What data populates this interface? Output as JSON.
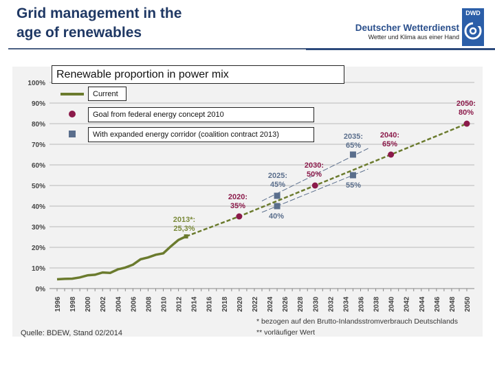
{
  "header": {
    "title_line1": "Grid management in the",
    "title_line2": "age of renewables",
    "brand_name": "Deutscher Wetterdienst",
    "brand_tagline": "Wetter und Klima aus einer Hand",
    "logo_text": "DWD"
  },
  "chart_data": {
    "type": "line",
    "title": "Renewable proportion in power mix",
    "ylim": [
      0,
      100
    ],
    "yticks": [
      "0%",
      "10%",
      "20%",
      "30%",
      "40%",
      "50%",
      "60%",
      "70%",
      "80%",
      "90%",
      "100%"
    ],
    "xlim": [
      1996,
      2050
    ],
    "xticks": [
      "1996",
      "1998",
      "2000",
      "2002",
      "2004",
      "2006",
      "2008",
      "2010",
      "2012",
      "2014",
      "2016",
      "2018",
      "2020",
      "2022",
      "2024",
      "2026",
      "2028",
      "2030",
      "2032",
      "2034",
      "2036",
      "2038",
      "2040",
      "2042",
      "2044",
      "2046",
      "2048",
      "2050"
    ],
    "grid": true,
    "legend": [
      "Current",
      "Goal from federal energy concept 2010",
      "With expanded energy corridor (coalition contract 2013)"
    ],
    "series": [
      {
        "name": "Current",
        "color": "#6b7b2e",
        "x": [
          1996,
          1997,
          1998,
          1999,
          2000,
          2001,
          2002,
          2003,
          2004,
          2005,
          2006,
          2007,
          2008,
          2009,
          2010,
          2011,
          2012,
          2013
        ],
        "y": [
          4.5,
          4.7,
          4.8,
          5.4,
          6.4,
          6.7,
          7.8,
          7.6,
          9.3,
          10.2,
          11.6,
          14.2,
          15.1,
          16.4,
          17.1,
          20.5,
          23.6,
          25.3
        ]
      },
      {
        "name": "Goal from federal energy concept 2010",
        "color": "#8b1a4a",
        "x": [
          2020,
          2030,
          2040,
          2050
        ],
        "y": [
          35,
          50,
          65,
          80
        ]
      },
      {
        "name": "With expanded energy corridor (coalition contract 2013)",
        "color": "#5a6e8c",
        "x": [
          2025,
          2025,
          2035,
          2035
        ],
        "y": [
          45,
          40,
          65,
          55
        ]
      }
    ],
    "annotations": [
      {
        "text1": "2013*:",
        "text2": "25,3%",
        "color": "#7a8a3a"
      },
      {
        "text1": "2020:",
        "text2": "35%",
        "color": "#8b1a4a"
      },
      {
        "text1": "2025:",
        "text2": "45%",
        "color": "#5a6e8c"
      },
      {
        "text1": "",
        "text2": "40%",
        "color": "#5a6e8c"
      },
      {
        "text1": "2030:",
        "text2": "50%",
        "color": "#8b1a4a"
      },
      {
        "text1": "2035:",
        "text2": "65%",
        "color": "#5a6e8c"
      },
      {
        "text1": "",
        "text2": "55%",
        "color": "#5a6e8c"
      },
      {
        "text1": "2040:",
        "text2": "65%",
        "color": "#8b1a4a"
      },
      {
        "text1": "2050:",
        "text2": "80%",
        "color": "#8b1a4a"
      }
    ]
  },
  "notes": {
    "source": "Quelle: BDEW, Stand 02/2014",
    "footnote1": "* bezogen auf den Brutto-Inlandsstromverbrauch Deutschlands",
    "footnote2": "** vorläufiger Wert"
  }
}
